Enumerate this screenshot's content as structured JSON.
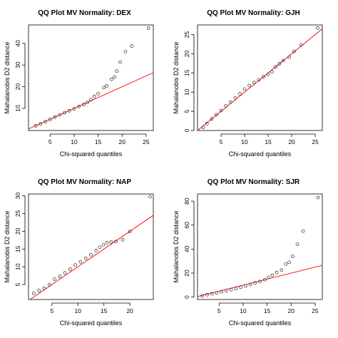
{
  "chart_data": [
    {
      "type": "scatter",
      "title": "QQ Plot MV Normality: DEX",
      "xlabel": "Chi-squared quantiles",
      "ylabel": "Mahalanobis D2 distance",
      "xlim": [
        0.5,
        26.5
      ],
      "ylim": [
        -0.2,
        48.5
      ],
      "xticks": [
        5,
        10,
        15,
        20,
        25
      ],
      "yticks": [
        10,
        20,
        30,
        40
      ],
      "grid": false,
      "ref_line": {
        "intercept": 0,
        "slope": 1,
        "color": "#ff0000"
      },
      "points": {
        "x": [
          2,
          3,
          4,
          5,
          6,
          7,
          8,
          9,
          10,
          11,
          12,
          12.8,
          13.5,
          14.2,
          15,
          16.2,
          16.8,
          17.8,
          18.4,
          18.9,
          19.6,
          20.7,
          22,
          25.5
        ],
        "y": [
          2,
          2.8,
          3.8,
          4.9,
          6,
          7,
          8,
          8.9,
          9.8,
          10.9,
          11.8,
          12.8,
          14,
          15.5,
          16.8,
          19.6,
          20.4,
          23.4,
          24.5,
          27.2,
          31.3,
          36.2,
          38.8,
          47
        ]
      }
    },
    {
      "type": "scatter",
      "title": "QQ Plot MV Normality: GJH",
      "xlabel": "Chi-squared quantiles",
      "ylabel": "Mahalanobis D2 distance",
      "xlim": [
        0,
        26.5
      ],
      "ylim": [
        0,
        27.5
      ],
      "xticks": [
        5,
        10,
        15,
        20,
        25
      ],
      "yticks": [
        0,
        5,
        10,
        15,
        20,
        25
      ],
      "grid": false,
      "ref_line": {
        "intercept": 0,
        "slope": 1,
        "color": "#ff0000"
      },
      "points": {
        "x": [
          1.2,
          2,
          3,
          4,
          5,
          6,
          7,
          8,
          9,
          10,
          11,
          12,
          13,
          14,
          15,
          15.8,
          16.6,
          17.4,
          18.2,
          19.5,
          20.5,
          22,
          25.5
        ],
        "y": [
          0.8,
          1.8,
          3,
          4.1,
          5.2,
          6.4,
          7.4,
          8.5,
          9.6,
          10.8,
          11.7,
          12.5,
          13.2,
          14,
          14.6,
          15.3,
          16.6,
          17.4,
          18.2,
          19.1,
          20.6,
          22.3,
          26.7
        ]
      }
    },
    {
      "type": "scatter",
      "title": "QQ Plot MV Normality: NAP",
      "xlabel": "Chi-squared quantiles",
      "ylabel": "Mahalanobis D2 distance",
      "xlim": [
        0.5,
        24.5
      ],
      "ylim": [
        0.8,
        30.5
      ],
      "xticks": [
        5,
        10,
        15,
        20
      ],
      "yticks": [
        5,
        10,
        15,
        20,
        25,
        30
      ],
      "grid": false,
      "ref_line": {
        "intercept": 0,
        "slope": 1,
        "color": "#ff0000"
      },
      "points": {
        "x": [
          1.5,
          2.5,
          3.5,
          4.5,
          5.5,
          6.5,
          7.5,
          8.5,
          9.5,
          10.5,
          11.5,
          12.5,
          13.5,
          14.2,
          14.9,
          15.6,
          16.4,
          17.3,
          18.6,
          20,
          23.9
        ],
        "y": [
          2.5,
          3.3,
          4,
          5,
          6.5,
          7.3,
          8.3,
          9.3,
          10.5,
          11.4,
          12.4,
          13.4,
          14.6,
          15.5,
          16.2,
          16.8,
          17,
          17.1,
          17.6,
          19.9,
          29.7
        ]
      }
    },
    {
      "type": "scatter",
      "title": "QQ Plot MV Normality: SJR",
      "xlabel": "Chi-squared quantiles",
      "ylabel": "Mahalanobis D2 distance",
      "xlim": [
        0.5,
        26.5
      ],
      "ylim": [
        -2,
        86
      ],
      "xticks": [
        5,
        10,
        15,
        20,
        25
      ],
      "yticks": [
        0,
        20,
        40,
        60,
        80
      ],
      "grid": false,
      "ref_line": {
        "intercept": 0,
        "slope": 1,
        "color": "#ff0000"
      },
      "points": {
        "x": [
          1.5,
          2.5,
          3.5,
          4.5,
          5.5,
          6.5,
          7.5,
          8.5,
          9.5,
          10.5,
          11.5,
          12.5,
          13.5,
          14.5,
          15.3,
          16.1,
          17,
          18,
          18.9,
          19.6,
          20.3,
          21.3,
          22.5,
          25.6
        ],
        "y": [
          1,
          2,
          2.8,
          3.5,
          4.5,
          5.3,
          6.2,
          7.2,
          8.2,
          9.3,
          10.5,
          11.8,
          13,
          14.5,
          16.5,
          18.2,
          20.5,
          22.5,
          27.5,
          29,
          34,
          44,
          55,
          83
        ]
      }
    }
  ]
}
